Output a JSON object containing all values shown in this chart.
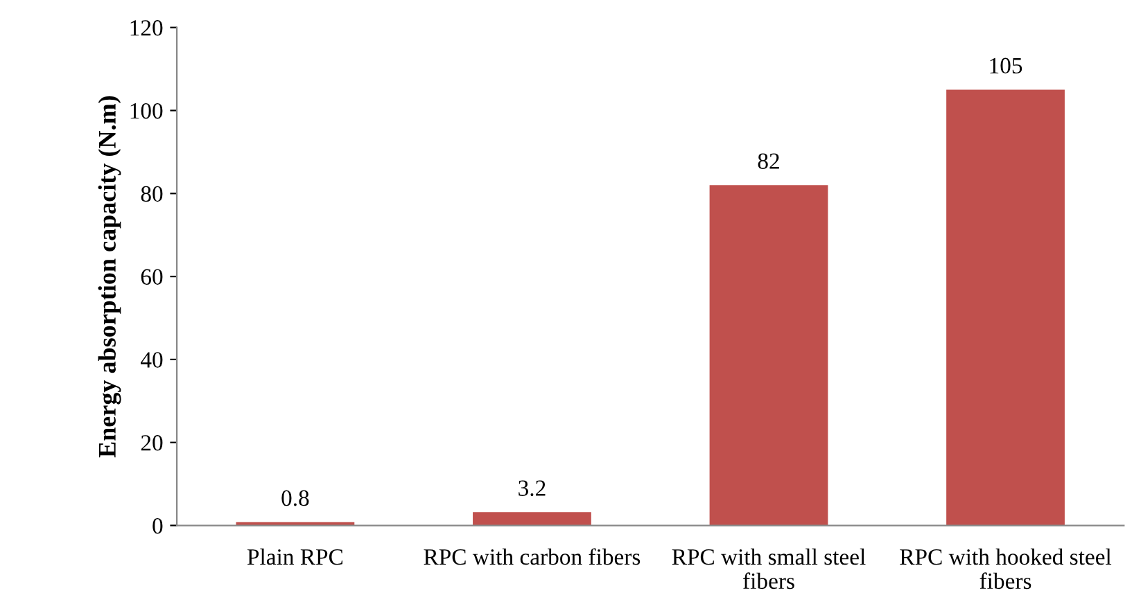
{
  "chart_data": {
    "type": "bar",
    "ylabel": "Energy absorption capacity (N.m)",
    "categories": [
      "Plain RPC",
      "RPC with carbon fibers",
      "RPC with small steel fibers",
      "RPC with hooked steel fibers"
    ],
    "values": [
      0.8,
      3.2,
      82,
      105
    ],
    "color": "#c0504d",
    "ylim": [
      0,
      120
    ],
    "yticks": [
      0,
      20,
      40,
      60,
      80,
      100,
      120
    ],
    "grid": false,
    "data_labels": true
  }
}
